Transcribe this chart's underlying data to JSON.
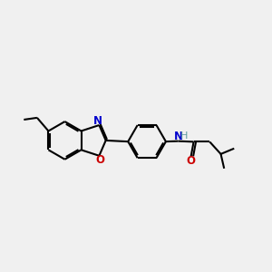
{
  "bg_color": "#f0f0f0",
  "bond_color": "#000000",
  "N_color": "#0000cc",
  "O_color": "#cc0000",
  "H_color": "#5f9ea0",
  "bond_width": 1.5,
  "dbo": 0.07,
  "figsize": [
    3.0,
    3.0
  ],
  "dpi": 100,
  "xlim": [
    0,
    12
  ],
  "ylim": [
    2,
    9
  ]
}
